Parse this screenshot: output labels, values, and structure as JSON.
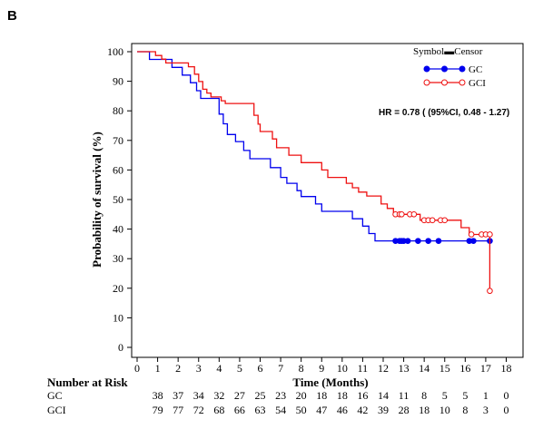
{
  "panel_label": "B",
  "chart_data": {
    "type": "line",
    "xlabel": "Time (Months)",
    "ylabel": "Probability of survival (%)",
    "xlim": [
      0,
      18
    ],
    "ylim": [
      0,
      100
    ],
    "x_ticks": [
      0,
      1,
      2,
      3,
      4,
      5,
      6,
      7,
      8,
      9,
      10,
      11,
      12,
      13,
      14,
      15,
      16,
      17,
      18
    ],
    "y_ticks": [
      0,
      10,
      20,
      30,
      40,
      50,
      60,
      70,
      80,
      90,
      100
    ],
    "legend_title": "Symbol▬Censor",
    "legend_position": "top-right",
    "annotation": "HR = 0.78 ( (95%CI, 0.48 - 1.27)",
    "series": [
      {
        "name": "GC",
        "color": "#0000ee",
        "marker": "filled-circle",
        "step_points": [
          [
            0,
            100
          ],
          [
            0.6,
            100
          ],
          [
            0.6,
            97.4
          ],
          [
            1.7,
            97.4
          ],
          [
            1.7,
            94.7
          ],
          [
            2.2,
            94.7
          ],
          [
            2.2,
            92.1
          ],
          [
            2.6,
            92.1
          ],
          [
            2.6,
            89.5
          ],
          [
            2.9,
            89.5
          ],
          [
            2.9,
            86.8
          ],
          [
            3.1,
            86.8
          ],
          [
            3.1,
            84.2
          ],
          [
            4.0,
            84.2
          ],
          [
            4.0,
            78.9
          ],
          [
            4.2,
            78.9
          ],
          [
            4.2,
            75.6
          ],
          [
            4.4,
            75.6
          ],
          [
            4.4,
            72.0
          ],
          [
            4.8,
            72.0
          ],
          [
            4.8,
            69.6
          ],
          [
            5.2,
            69.6
          ],
          [
            5.2,
            66.6
          ],
          [
            5.5,
            66.6
          ],
          [
            5.5,
            63.8
          ],
          [
            6.5,
            63.8
          ],
          [
            6.5,
            60.8
          ],
          [
            7.0,
            60.8
          ],
          [
            7.0,
            57.5
          ],
          [
            7.3,
            57.5
          ],
          [
            7.3,
            55.5
          ],
          [
            7.8,
            55.5
          ],
          [
            7.8,
            53.0
          ],
          [
            8.0,
            53.0
          ],
          [
            8.0,
            51.0
          ],
          [
            8.7,
            51.0
          ],
          [
            8.7,
            48.5
          ],
          [
            9.0,
            48.5
          ],
          [
            9.0,
            46.0
          ],
          [
            10.5,
            46.0
          ],
          [
            10.5,
            43.5
          ],
          [
            11.0,
            43.5
          ],
          [
            11.0,
            41.0
          ],
          [
            11.3,
            41.0
          ],
          [
            11.3,
            38.5
          ],
          [
            11.6,
            38.5
          ],
          [
            11.6,
            36.0
          ],
          [
            17.2,
            36.0
          ]
        ],
        "censor_times": [
          12.6,
          12.8,
          12.9,
          13.0,
          13.2,
          13.7,
          14.2,
          14.7,
          16.2,
          16.4,
          17.2
        ],
        "at_risk": [
          38,
          37,
          34,
          32,
          27,
          25,
          23,
          20,
          18,
          18,
          16,
          14,
          11,
          8,
          5,
          5,
          1,
          0
        ]
      },
      {
        "name": "GCI",
        "color": "#ee1111",
        "marker": "open-circle",
        "step_points": [
          [
            0,
            100
          ],
          [
            0.9,
            100
          ],
          [
            0.9,
            98.7
          ],
          [
            1.2,
            98.7
          ],
          [
            1.2,
            97.5
          ],
          [
            1.4,
            97.5
          ],
          [
            1.4,
            96.2
          ],
          [
            2.5,
            96.2
          ],
          [
            2.5,
            94.9
          ],
          [
            2.8,
            94.9
          ],
          [
            2.8,
            92.4
          ],
          [
            3.0,
            92.4
          ],
          [
            3.0,
            89.9
          ],
          [
            3.2,
            89.9
          ],
          [
            3.2,
            87.3
          ],
          [
            3.4,
            87.3
          ],
          [
            3.4,
            86.0
          ],
          [
            3.6,
            86.0
          ],
          [
            3.6,
            84.7
          ],
          [
            4.1,
            84.7
          ],
          [
            4.1,
            83.4
          ],
          [
            4.3,
            83.4
          ],
          [
            4.3,
            82.5
          ],
          [
            5.7,
            82.5
          ],
          [
            5.7,
            78.5
          ],
          [
            5.9,
            78.5
          ],
          [
            5.9,
            75.5
          ],
          [
            6.0,
            75.5
          ],
          [
            6.0,
            73.0
          ],
          [
            6.6,
            73.0
          ],
          [
            6.6,
            70.5
          ],
          [
            6.8,
            70.5
          ],
          [
            6.8,
            67.5
          ],
          [
            7.4,
            67.5
          ],
          [
            7.4,
            65.0
          ],
          [
            8.0,
            65.0
          ],
          [
            8.0,
            62.5
          ],
          [
            9.0,
            62.5
          ],
          [
            9.0,
            60.0
          ],
          [
            9.3,
            60.0
          ],
          [
            9.3,
            57.5
          ],
          [
            10.2,
            57.5
          ],
          [
            10.2,
            55.5
          ],
          [
            10.5,
            55.5
          ],
          [
            10.5,
            54.0
          ],
          [
            10.8,
            54.0
          ],
          [
            10.8,
            52.5
          ],
          [
            11.2,
            52.5
          ],
          [
            11.2,
            51.2
          ],
          [
            11.9,
            51.2
          ],
          [
            11.9,
            48.5
          ],
          [
            12.2,
            48.5
          ],
          [
            12.2,
            47.0
          ],
          [
            12.5,
            47.0
          ],
          [
            12.5,
            45.0
          ],
          [
            13.8,
            45.0
          ],
          [
            13.8,
            43.0
          ],
          [
            15.8,
            43.0
          ],
          [
            15.8,
            40.5
          ],
          [
            16.2,
            40.5
          ],
          [
            16.2,
            38.2
          ],
          [
            17.2,
            38.2
          ],
          [
            17.2,
            19.1
          ]
        ],
        "censor_times": [
          12.6,
          12.8,
          12.9,
          13.3,
          13.5,
          14.0,
          14.2,
          14.4,
          14.8,
          15.0,
          16.3,
          16.8,
          17.0,
          17.2
        ],
        "final_censor": [
          17.2,
          19.1
        ],
        "at_risk": [
          79,
          77,
          72,
          68,
          66,
          63,
          54,
          50,
          47,
          46,
          42,
          39,
          28,
          18,
          10,
          8,
          3,
          0
        ]
      }
    ],
    "risk_table_title": "Number at Risk"
  }
}
